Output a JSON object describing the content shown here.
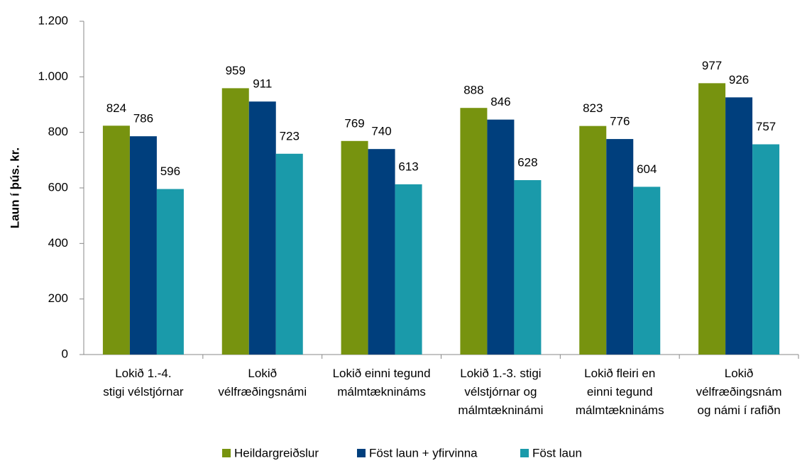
{
  "chart_data": {
    "type": "bar",
    "y_label": "Laun í þús. kr.",
    "categories": [
      [
        "Lokið 1.-4.",
        "stigi vélstjórnar"
      ],
      [
        "Lokið",
        "vélfræðingsnámi"
      ],
      [
        "Lokið einni tegund",
        "málmtæknináms"
      ],
      [
        "Lokið 1.-3. stigi",
        "vélstjórnar og",
        "málmtækninámi"
      ],
      [
        "Lokið fleiri en",
        "einni tegund",
        "málmtæknináms"
      ],
      [
        "Lokið",
        "vélfræðingsnám",
        "og námi í rafiðn"
      ]
    ],
    "series": [
      {
        "name": "Heildargreiðslur",
        "color": "#77930f",
        "values": [
          824,
          959,
          769,
          888,
          823,
          977
        ]
      },
      {
        "name": "Föst laun + yfirvinna",
        "color": "#003f7d",
        "values": [
          786,
          911,
          740,
          846,
          776,
          926
        ]
      },
      {
        "name": "Föst laun",
        "color": "#1a9aaa",
        "values": [
          596,
          723,
          613,
          628,
          604,
          757
        ]
      }
    ],
    "ylim": [
      0,
      1200
    ],
    "yticks": [
      0,
      200,
      400,
      600,
      800,
      {
        "value": 1000,
        "label": "1.000"
      },
      {
        "value": 1200,
        "label": "1.200"
      }
    ],
    "grid": false,
    "legend": "bottom"
  }
}
